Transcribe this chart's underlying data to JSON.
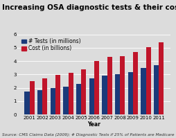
{
  "title": "Increasing OSA diagnostic tests & their cost",
  "years": [
    "2001",
    "2002",
    "2003",
    "2004",
    "2005",
    "2006",
    "2007",
    "2008",
    "2009",
    "2010",
    "2011"
  ],
  "tests": [
    1.7,
    1.85,
    2.0,
    2.1,
    2.3,
    2.7,
    2.9,
    3.0,
    3.2,
    3.5,
    3.7
  ],
  "cost": [
    2.5,
    2.7,
    2.95,
    3.15,
    3.4,
    4.0,
    4.3,
    4.4,
    4.7,
    5.05,
    5.4
  ],
  "bar_color_tests": "#1a3a7a",
  "bar_color_cost": "#c0152a",
  "xlabel": "Year",
  "ylim": [
    0,
    6
  ],
  "yticks": [
    0,
    1,
    2,
    3,
    4,
    5,
    6
  ],
  "legend_tests": "# Tests (in millions)",
  "legend_cost": "Cost (in billions)",
  "source_text": "Source: CMS Claims Data (2009); # Diagnostic Tests if 25% of Patients are Medicare",
  "background_color": "#dcdcdc",
  "title_fontsize": 7.5,
  "label_fontsize": 5.5,
  "tick_fontsize": 5.0,
  "source_fontsize": 4.2,
  "legend_fontsize": 5.5
}
